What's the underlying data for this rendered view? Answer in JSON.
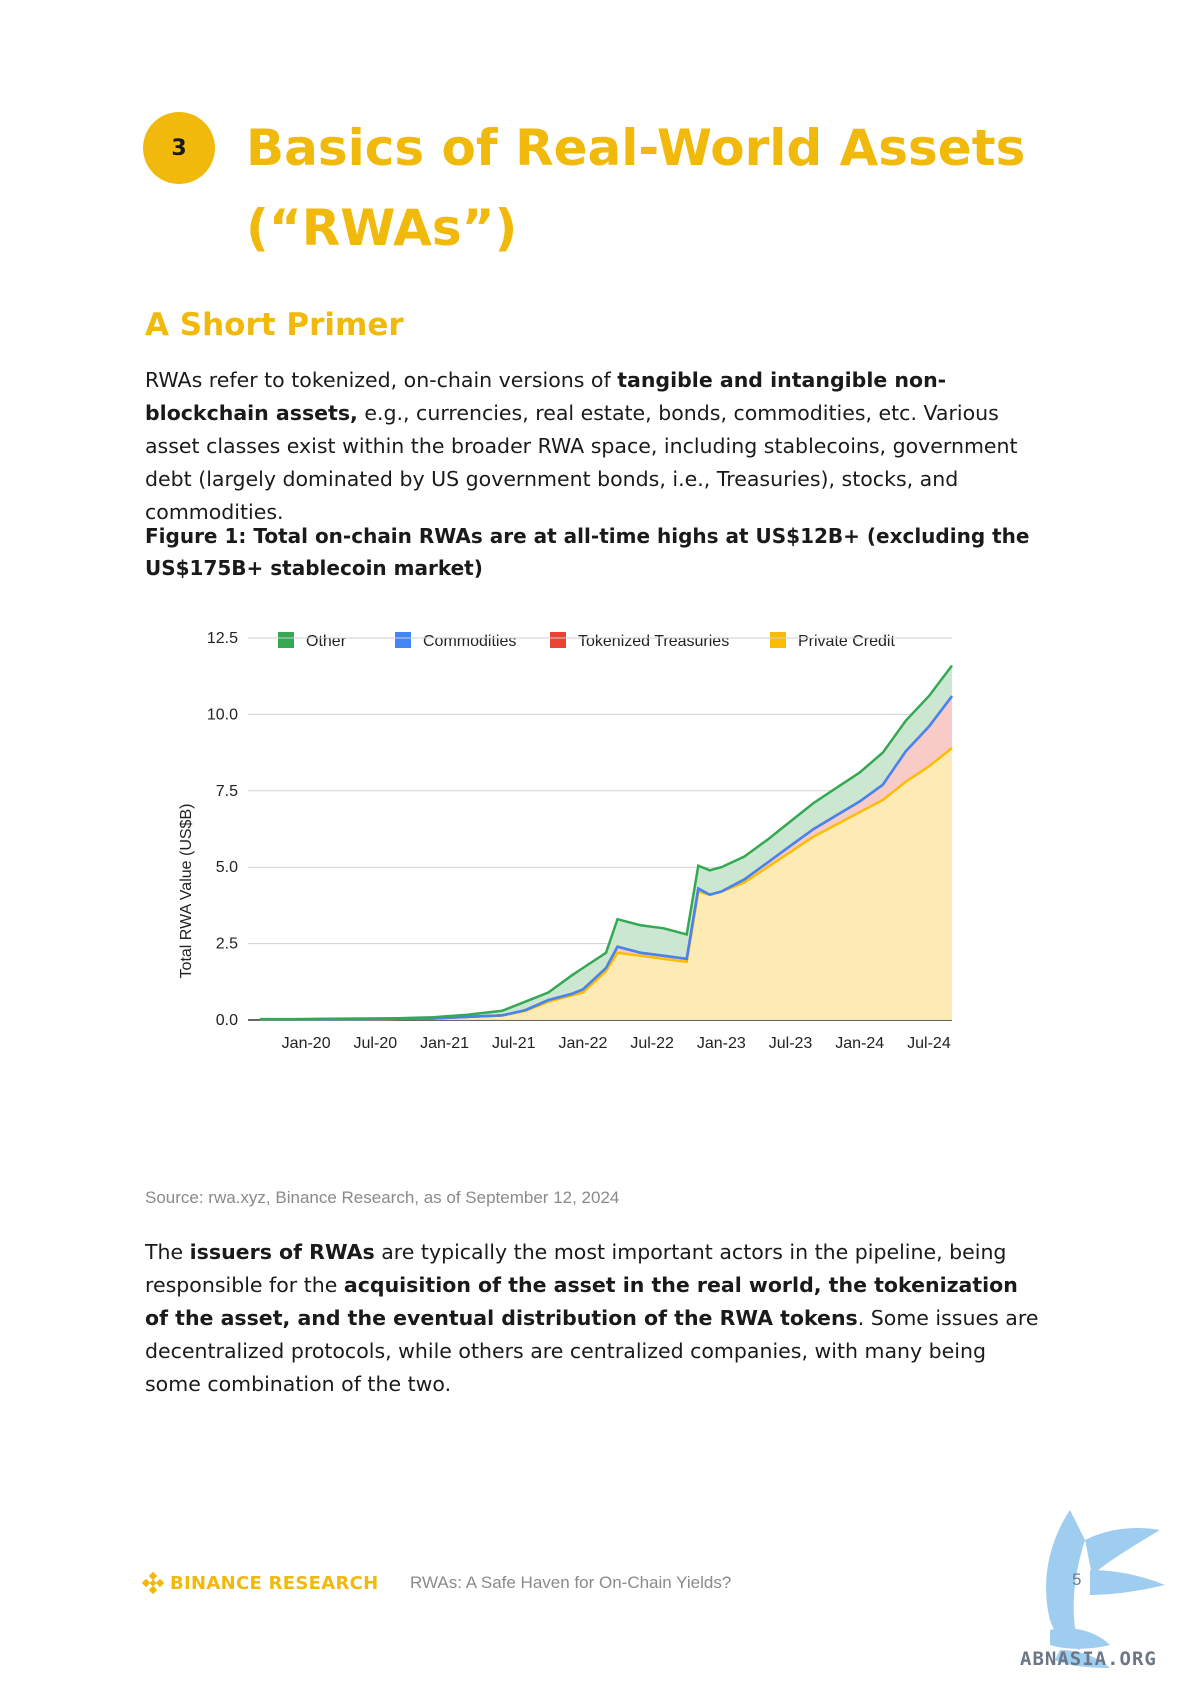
{
  "header": {
    "section_number": "3",
    "title": "Basics of Real-World Assets (“RWAs”)",
    "subtitle": "A Short Primer"
  },
  "intro": {
    "t1": "RWAs refer to tokenized, on-chain versions of ",
    "b1": "tangible and intangible non-blockchain assets,",
    "t2": " e.g., currencies, real estate, bonds, commodities, etc. Various asset classes exist within the broader RWA space, including stablecoins, government debt (largely dominated by US government bonds, i.e., Treasuries), stocks, and commodities."
  },
  "figure": {
    "caption": "Figure 1: Total on-chain RWAs are at all-time highs at US$12B+ (excluding the US$175B+ stablecoin market)",
    "source": "Source: rwa.xyz, Binance Research, as of September 12, 2024"
  },
  "issuers": {
    "t1": "The ",
    "b1": "issuers of RWAs",
    "t2": " are typically the most important actors in the pipeline, being responsible for the ",
    "b2": "acquisition of the asset in the real world, the tokenization of the asset, and the eventual distribution of the RWA tokens",
    "t3": ". Some issues are decentralized protocols, while others are centralized companies, with many being some combination of the two."
  },
  "footer": {
    "brand": "BINANCE RESEARCH",
    "doc_title": "RWAs: A Safe Haven for On-Chain Yields?",
    "page_number": "5",
    "watermark": "ABNASIA.ORG"
  },
  "colors": {
    "brand_yellow": "#F0B90B",
    "other": "#34A853",
    "commodities": "#4285F4",
    "treasuries": "#EA4335",
    "private_credit": "#FBBC04"
  },
  "chart_data": {
    "type": "area",
    "stacked": true,
    "ylabel": "Total RWA Value (US$B)",
    "xlabel": "",
    "ylim": [
      0,
      12.5
    ],
    "yticks": [
      "0.0",
      "2.5",
      "5.0",
      "7.5",
      "10.0",
      "12.5"
    ],
    "xticks": [
      "Jan-20",
      "Jul-20",
      "Jan-21",
      "Jul-21",
      "Jan-22",
      "Jul-22",
      "Jan-23",
      "Jul-23",
      "Jan-24",
      "Jul-24"
    ],
    "grid": true,
    "legend_position": "top",
    "x": [
      "2019-09",
      "2019-12",
      "2020-03",
      "2020-06",
      "2020-09",
      "2020-12",
      "2021-03",
      "2021-06",
      "2021-08",
      "2021-10",
      "2021-12",
      "2022-01",
      "2022-03",
      "2022-04",
      "2022-06",
      "2022-08",
      "2022-10",
      "2022-11",
      "2022-12",
      "2023-01",
      "2023-03",
      "2023-05",
      "2023-07",
      "2023-09",
      "2023-11",
      "2024-01",
      "2024-03",
      "2024-05",
      "2024-07",
      "2024-09"
    ],
    "series": [
      {
        "name": "Private Credit",
        "color": "#FBBC04",
        "values": [
          0.02,
          0.02,
          0.03,
          0.03,
          0.04,
          0.05,
          0.1,
          0.15,
          0.3,
          0.6,
          0.8,
          0.9,
          1.6,
          2.2,
          2.1,
          2.0,
          1.9,
          4.2,
          4.1,
          4.2,
          4.5,
          5.0,
          5.5,
          6.0,
          6.4,
          6.8,
          7.2,
          7.8,
          8.3,
          8.9
        ]
      },
      {
        "name": "Tokenized Treasuries",
        "color": "#EA4335",
        "values": [
          0.0,
          0.0,
          0.0,
          0.0,
          0.0,
          0.0,
          0.0,
          0.0,
          0.02,
          0.05,
          0.05,
          0.1,
          0.1,
          0.2,
          0.1,
          0.1,
          0.1,
          0.1,
          0.0,
          0.0,
          0.1,
          0.15,
          0.2,
          0.25,
          0.3,
          0.35,
          0.5,
          1.0,
          1.3,
          1.7
        ]
      },
      {
        "name": "Commodities",
        "color": "#4285F4",
        "values": [
          0.0,
          0.0,
          0.0,
          0.0,
          0.0,
          0.0,
          0.0,
          0.0,
          0.0,
          0.0,
          0.0,
          0.0,
          0.0,
          0.0,
          0.0,
          0.0,
          0.0,
          0.0,
          0.0,
          0.0,
          0.0,
          0.0,
          0.0,
          0.0,
          0.0,
          0.0,
          0.0,
          0.0,
          0.0,
          0.0
        ]
      },
      {
        "name": "Other",
        "color": "#34A853",
        "values": [
          0.01,
          0.01,
          0.01,
          0.02,
          0.02,
          0.04,
          0.07,
          0.15,
          0.28,
          0.25,
          0.6,
          0.7,
          0.5,
          0.9,
          0.9,
          0.9,
          0.8,
          0.75,
          0.8,
          0.8,
          0.75,
          0.75,
          0.8,
          0.85,
          0.9,
          0.95,
          1.05,
          1.0,
          1.0,
          1.0
        ]
      }
    ]
  }
}
